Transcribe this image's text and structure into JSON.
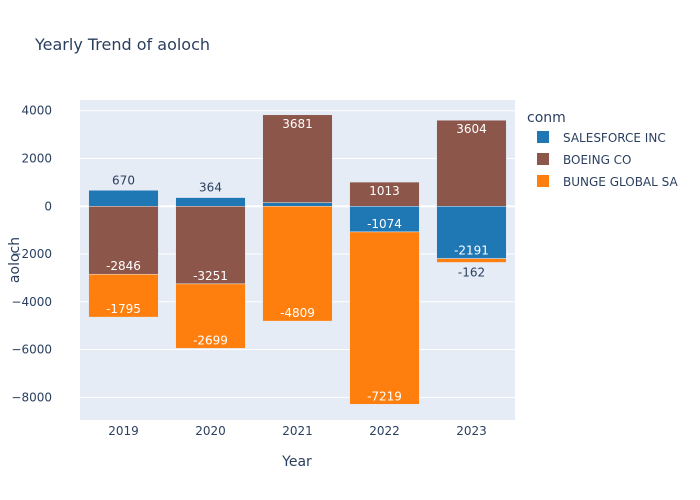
{
  "chart_data": {
    "type": "bar",
    "barmode": "relative",
    "title": "Yearly Trend of aoloch",
    "xlabel": "Year",
    "ylabel": "aoloch",
    "categories": [
      "2019",
      "2020",
      "2021",
      "2022",
      "2023"
    ],
    "ylim": [
      -8950,
      4450
    ],
    "yticks": [
      4000,
      2000,
      0,
      -2000,
      -4000,
      -6000,
      -8000
    ],
    "ytick_labels": [
      "4000",
      "2000",
      "0",
      "−2000",
      "−4000",
      "−6000",
      "−8000"
    ],
    "legend": {
      "title": "conm",
      "position": "right"
    },
    "grid": true,
    "plot_bg": "#e5ecf6",
    "series": [
      {
        "name": "SALESFORCE INC",
        "color": "#1f77b4",
        "values": [
          670,
          364,
          150,
          -1074,
          -2191
        ],
        "labels": [
          "670",
          "364",
          "",
          "-1074",
          "-2191"
        ]
      },
      {
        "name": "BOEING CO",
        "color": "#8c564b",
        "values": [
          -2846,
          -3251,
          3681,
          1013,
          3604
        ],
        "labels": [
          "-2846",
          "-3251",
          "3681",
          "1013",
          "3604"
        ]
      },
      {
        "name": "BUNGE GLOBAL SA",
        "color": "#ff7f0e",
        "values": [
          -1795,
          -2699,
          -4809,
          -7219,
          -162
        ],
        "labels": [
          "-1795",
          "-2699",
          "-4809",
          "-7219",
          "-162"
        ]
      }
    ]
  }
}
